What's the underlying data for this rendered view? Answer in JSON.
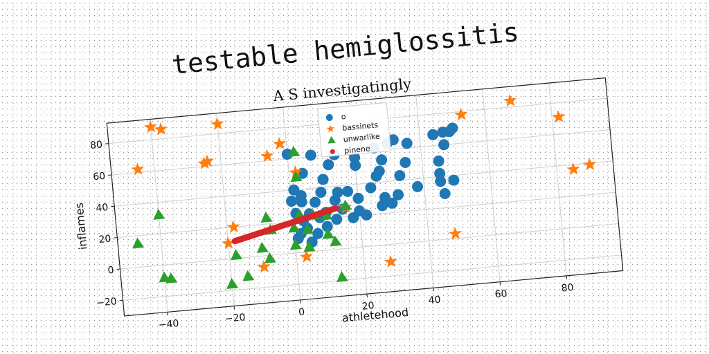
{
  "title": "testable hemiglossitis",
  "chart_data": {
    "type": "scatter",
    "title": "A S investigatingly",
    "xlabel": "athletehood",
    "ylabel": "inflames",
    "xlim": [
      -53,
      97
    ],
    "ylim": [
      -30,
      93
    ],
    "xticks": [
      -40,
      -20,
      0,
      20,
      40,
      60,
      80
    ],
    "yticks": [
      -20,
      0,
      20,
      40,
      60,
      80
    ],
    "grid": true,
    "legend_position": "top-center",
    "series": [
      {
        "name": "o",
        "marker": "circle",
        "color": "#1f77b4",
        "points": [
          [
            0,
            63
          ],
          [
            7,
            61
          ],
          [
            14,
            60
          ],
          [
            20,
            57
          ],
          [
            26,
            62
          ],
          [
            30,
            64
          ],
          [
            32,
            66
          ],
          [
            36,
            63
          ],
          [
            44,
            67
          ],
          [
            47,
            68
          ],
          [
            49,
            68
          ],
          [
            50,
            70
          ],
          [
            47,
            60
          ],
          [
            28,
            54
          ],
          [
            12,
            54
          ],
          [
            20,
            52
          ],
          [
            35,
            51
          ],
          [
            45,
            50
          ],
          [
            4,
            50
          ],
          [
            10,
            45
          ],
          [
            27,
            47
          ],
          [
            33,
            43
          ],
          [
            26,
            44
          ],
          [
            45,
            42
          ],
          [
            1,
            40
          ],
          [
            3,
            36
          ],
          [
            9,
            37
          ],
          [
            14,
            36
          ],
          [
            17,
            36
          ],
          [
            24,
            37
          ],
          [
            38,
            35
          ],
          [
            45,
            37
          ],
          [
            49,
            37
          ],
          [
            0,
            33
          ],
          [
            3,
            32
          ],
          [
            7,
            31
          ],
          [
            13,
            31
          ],
          [
            20,
            31
          ],
          [
            28,
            30
          ],
          [
            32,
            31
          ],
          [
            46,
            29
          ],
          [
            1,
            25
          ],
          [
            5,
            24
          ],
          [
            10,
            24
          ],
          [
            15,
            25
          ],
          [
            20,
            23
          ],
          [
            27,
            25
          ],
          [
            30,
            26
          ],
          [
            3,
            20
          ],
          [
            8,
            21
          ],
          [
            13,
            19
          ],
          [
            18,
            19
          ],
          [
            22,
            20
          ],
          [
            4,
            15
          ],
          [
            10,
            15
          ],
          [
            2,
            12
          ],
          [
            7,
            11
          ],
          [
            1,
            9
          ],
          [
            5,
            6
          ]
        ]
      },
      {
        "name": "bassinets",
        "marker": "star",
        "color": "#ff7f0e",
        "points": [
          [
            -40,
            88
          ],
          [
            -37,
            86
          ],
          [
            -20,
            86
          ],
          [
            -45,
            62
          ],
          [
            -25,
            62
          ],
          [
            -24,
            63
          ],
          [
            -6,
            63
          ],
          [
            -2,
            70
          ],
          [
            2,
            51
          ],
          [
            53,
            78
          ],
          [
            68,
            84
          ],
          [
            82,
            71
          ],
          [
            -18,
            20
          ],
          [
            -20,
            10
          ],
          [
            -10,
            -7
          ],
          [
            3,
            -3
          ],
          [
            28,
            -11
          ],
          [
            48,
            3
          ],
          [
            85,
            37
          ],
          [
            90,
            39
          ],
          [
            16,
            26
          ]
        ]
      },
      {
        "name": "unwarlike",
        "marker": "triangle",
        "color": "#2ca02c",
        "points": [
          [
            2,
            64
          ],
          [
            2,
            48
          ],
          [
            -40,
            32
          ],
          [
            -47,
            15
          ],
          [
            -8,
            24
          ],
          [
            -7,
            16
          ],
          [
            2,
            24
          ],
          [
            6,
            23
          ],
          [
            10,
            22
          ],
          [
            16,
            27
          ],
          [
            0,
            16
          ],
          [
            4,
            14
          ],
          [
            10,
            10
          ],
          [
            12,
            5
          ],
          [
            -10,
            5
          ],
          [
            -18,
            2
          ],
          [
            -8,
            -2
          ],
          [
            0,
            5
          ],
          [
            4,
            3
          ],
          [
            -40,
            -8
          ],
          [
            -38,
            -9
          ],
          [
            -15,
            -12
          ],
          [
            -20,
            -16
          ],
          [
            13,
            -18
          ]
        ]
      },
      {
        "name": "pinene",
        "marker": "line",
        "color": "#d62728",
        "points": [
          [
            -18,
            11
          ],
          [
            13,
            26
          ]
        ]
      }
    ]
  }
}
